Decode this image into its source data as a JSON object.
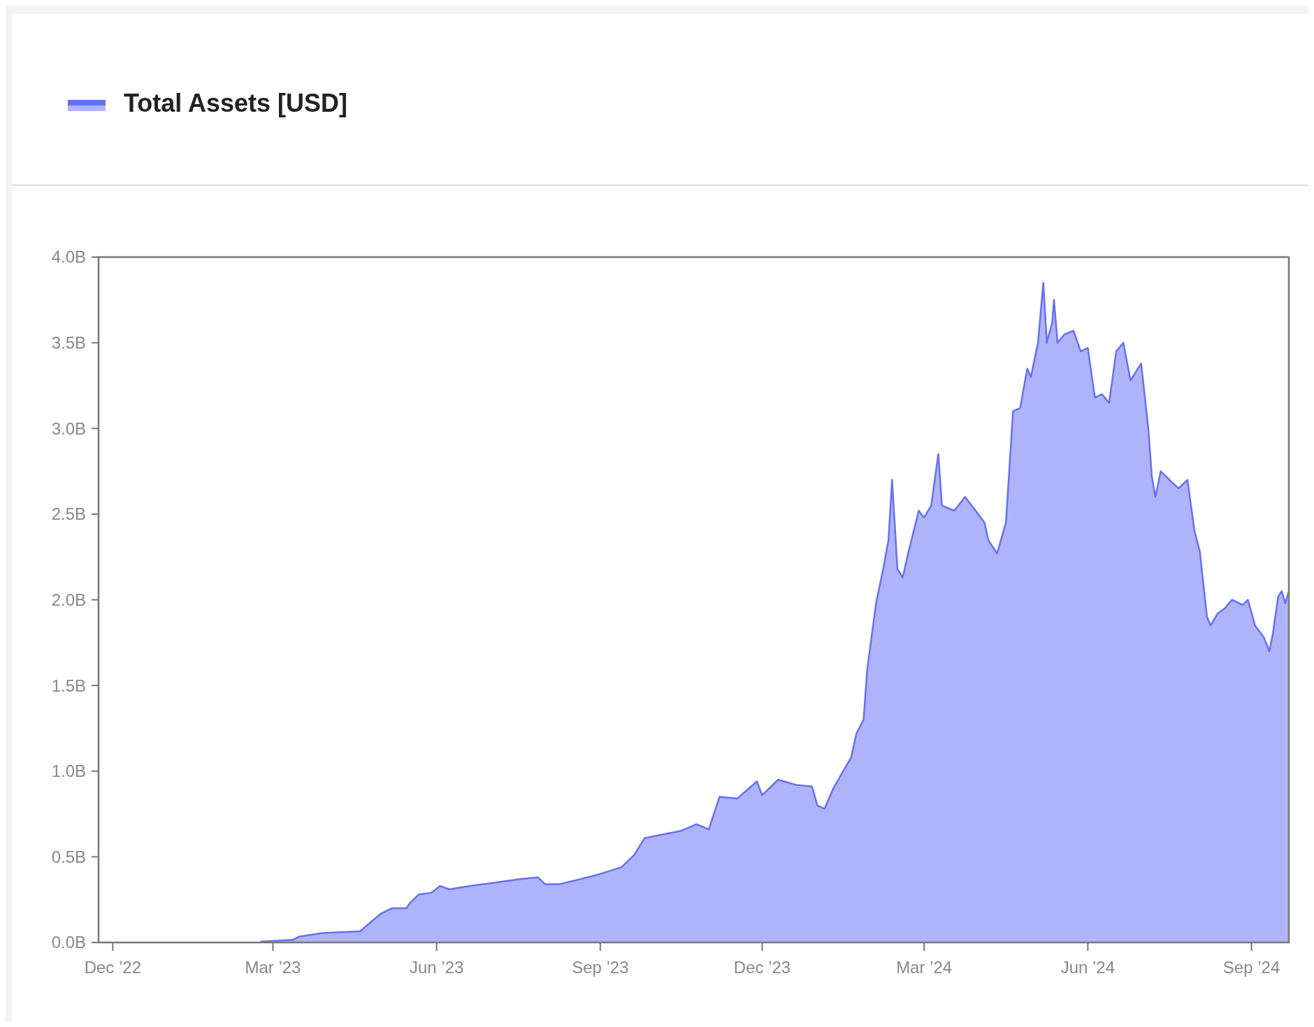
{
  "chart_data": {
    "type": "area",
    "legend": "top left",
    "grid": false,
    "xlim": [
      "2022-11-23",
      "2024-09-22"
    ],
    "xticks": [
      {
        "value": "2022-12-01",
        "label": "Dec ’22"
      },
      {
        "value": "2023-03-01",
        "label": "Mar ’23"
      },
      {
        "value": "2023-06-01",
        "label": "Jun ’23"
      },
      {
        "value": "2023-09-01",
        "label": "Sep ’23"
      },
      {
        "value": "2023-12-01",
        "label": "Dec ’23"
      },
      {
        "value": "2024-03-01",
        "label": "Mar ’24"
      },
      {
        "value": "2024-06-01",
        "label": "Jun ’24"
      },
      {
        "value": "2024-09-01",
        "label": "Sep ’24"
      }
    ],
    "ylim": [
      0,
      4
    ],
    "yticks": [
      {
        "value": 0,
        "label": "0.0B"
      },
      {
        "value": 0.5,
        "label": "0.5B"
      },
      {
        "value": 1,
        "label": "1.0B"
      },
      {
        "value": 1.5,
        "label": "1.5B"
      },
      {
        "value": 2,
        "label": "2.0B"
      },
      {
        "value": 2.5,
        "label": "2.5B"
      },
      {
        "value": 3,
        "label": "3.0B"
      },
      {
        "value": 3.5,
        "label": "3.5B"
      },
      {
        "value": 4,
        "label": "4.0B"
      }
    ],
    "x": [
      "2023-02-22",
      "2023-03-12",
      "2023-03-16",
      "2023-03-29",
      "2023-04-19",
      "2023-04-24",
      "2023-05-01",
      "2023-05-07",
      "2023-05-15",
      "2023-05-17",
      "2023-05-22",
      "2023-05-29",
      "2023-06-03",
      "2023-06-08",
      "2023-06-20",
      "2023-07-04",
      "2023-07-18",
      "2023-07-28",
      "2023-08-01",
      "2023-08-09",
      "2023-08-21",
      "2023-09-01",
      "2023-09-13",
      "2023-09-20",
      "2023-09-26",
      "2023-10-06",
      "2023-10-16",
      "2023-10-25",
      "2023-11-01",
      "2023-11-07",
      "2023-11-17",
      "2023-11-28",
      "2023-12-01",
      "2023-12-10",
      "2023-12-20",
      "2023-12-29",
      "2024-01-01",
      "2024-01-05",
      "2024-01-10",
      "2024-01-15",
      "2024-01-20",
      "2024-01-23",
      "2024-01-27",
      "2024-01-29",
      "2024-02-03",
      "2024-02-07",
      "2024-02-10",
      "2024-02-12",
      "2024-02-15",
      "2024-02-18",
      "2024-02-21",
      "2024-02-27",
      "2024-03-01",
      "2024-03-05",
      "2024-03-09",
      "2024-03-11",
      "2024-03-18",
      "2024-03-24",
      "2024-03-30",
      "2024-04-04",
      "2024-04-06",
      "2024-04-11",
      "2024-04-16",
      "2024-04-20",
      "2024-04-24",
      "2024-04-28",
      "2024-04-30",
      "2024-05-04",
      "2024-05-07",
      "2024-05-09",
      "2024-05-12",
      "2024-05-13",
      "2024-05-15",
      "2024-05-19",
      "2024-05-24",
      "2024-05-28",
      "2024-06-01",
      "2024-06-05",
      "2024-06-09",
      "2024-06-13",
      "2024-06-17",
      "2024-06-21",
      "2024-06-25",
      "2024-07-01",
      "2024-07-05",
      "2024-07-07",
      "2024-07-09",
      "2024-07-12",
      "2024-07-17",
      "2024-07-22",
      "2024-07-27",
      "2024-07-31",
      "2024-08-03",
      "2024-08-07",
      "2024-08-09",
      "2024-08-13",
      "2024-08-17",
      "2024-08-21",
      "2024-08-27",
      "2024-08-30",
      "2024-09-03",
      "2024-09-08",
      "2024-09-11",
      "2024-09-13",
      "2024-09-16",
      "2024-09-18",
      "2024-09-20",
      "2024-09-22"
    ],
    "series": [
      {
        "name": "Total Assets [USD]",
        "color": "#6670f5",
        "values": [
          0.005,
          0.015,
          0.035,
          0.055,
          0.065,
          0.11,
          0.17,
          0.2,
          0.2,
          0.23,
          0.28,
          0.29,
          0.33,
          0.31,
          0.33,
          0.35,
          0.37,
          0.38,
          0.34,
          0.34,
          0.37,
          0.4,
          0.44,
          0.51,
          0.61,
          0.63,
          0.65,
          0.69,
          0.66,
          0.85,
          0.84,
          0.94,
          0.86,
          0.95,
          0.92,
          0.91,
          0.8,
          0.78,
          0.9,
          0.99,
          1.08,
          1.22,
          1.3,
          1.59,
          1.98,
          2.18,
          2.35,
          2.7,
          2.18,
          2.13,
          2.27,
          2.52,
          2.48,
          2.55,
          2.85,
          2.55,
          2.52,
          2.6,
          2.52,
          2.45,
          2.35,
          2.27,
          2.45,
          3.1,
          3.12,
          3.35,
          3.3,
          3.5,
          3.85,
          3.5,
          3.62,
          3.75,
          3.5,
          3.55,
          3.57,
          3.45,
          3.47,
          3.18,
          3.2,
          3.15,
          3.45,
          3.5,
          3.28,
          3.38,
          3.0,
          2.72,
          2.6,
          2.75,
          2.7,
          2.65,
          2.7,
          2.4,
          2.28,
          1.9,
          1.85,
          1.92,
          1.95,
          2.0,
          1.97,
          2.0,
          1.85,
          1.78,
          1.7,
          1.8,
          2.02,
          2.05,
          1.98,
          2.05
        ]
      }
    ]
  }
}
